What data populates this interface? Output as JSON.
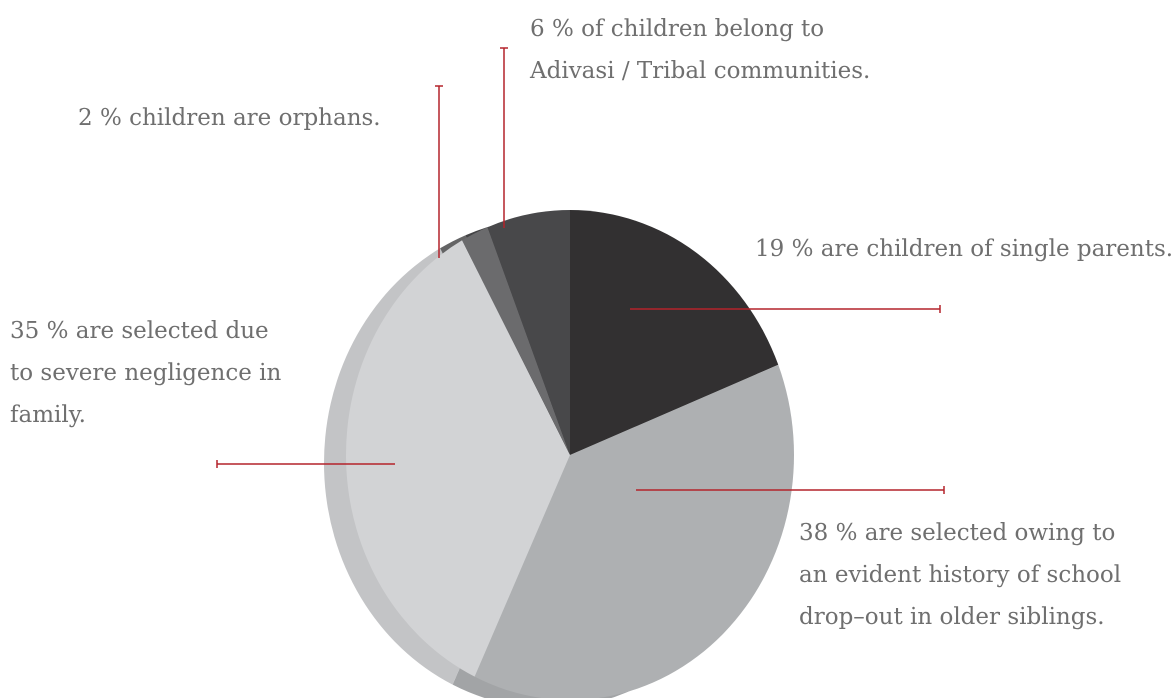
{
  "chart_data": {
    "type": "pie",
    "title": "",
    "slices": [
      {
        "key": "single_parents",
        "value": 19,
        "color": "#323031",
        "lines": [
          "19 % are children of single parents."
        ]
      },
      {
        "key": "school_dropout",
        "value": 38,
        "color": "#aeb0b2",
        "lines": [
          "38 % are selected owing to",
          "an evident history of school",
          "drop–out in older siblings."
        ]
      },
      {
        "key": "negligence",
        "value": 35,
        "color": "#d2d3d5",
        "lines": [
          "35 % are selected due",
          "to severe negligence in",
          "family."
        ]
      },
      {
        "key": "orphans",
        "value": 2,
        "color": "#6b6b6d",
        "lines": [
          "2 % children are orphans."
        ]
      },
      {
        "key": "tribal",
        "value": 6,
        "color": "#48484a",
        "lines": [
          "6 % of children belong to",
          "Adivasi / Tribal communities."
        ]
      }
    ],
    "leader_color": "#b4222a"
  }
}
